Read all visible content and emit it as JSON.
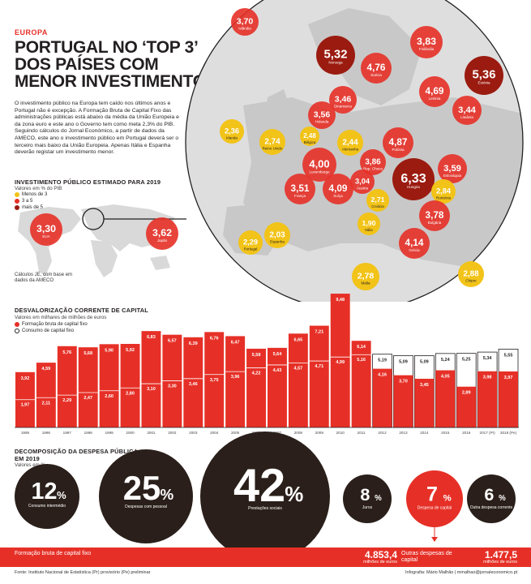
{
  "header": {
    "section": "EUROPA",
    "title": "PORTUGAL NO ‘TOP 3’ DOS PAÍSES COM MENOR INVESTIMENTO",
    "intro": "O investimento público na Europa tem caído nos últimos anos e Portugal não é excepção. A Formação Bruta de Capital Fixo das administrações públicas está abaixo da média da União Europeia e da zona euro e este ano o Governo tem como meta 2,3% do PIB. Seguindo cálculos do Jornal Económico, a partir de dados da AMECO, este ano o investimento público em Portugal deverá ser o terceiro mais baixo da União Europeia. Apenas Itália e Espanha deverão registar um investimento menor."
  },
  "colors": {
    "red": "#e63027",
    "dark_red": "#9b1b10",
    "yellow": "#f2c318",
    "dark": "#2a1f1a",
    "map_bg": "#dcdcdc"
  },
  "map": {
    "title": "INVESTIMENTO PÚBLICO ESTIMADO PARA 2019",
    "subtitle": "Valores em % do PIB",
    "legend": [
      {
        "label": "Menos de 3",
        "color": "#f2c318"
      },
      {
        "label": "3 a 5",
        "color": "#e63027"
      },
      {
        "label": "mais de 5",
        "color": "#9b1b10"
      }
    ],
    "notes": "Cálculos JE, com base em dados da AMECO",
    "countries": [
      {
        "name": "Islândia",
        "value": "3,70",
        "tier": "mid"
      },
      {
        "name": "EUA",
        "value": "3,30",
        "tier": "mid"
      },
      {
        "name": "Japão",
        "value": "3,62",
        "tier": "mid"
      },
      {
        "name": "Noruega",
        "value": "5,32",
        "tier": "high"
      },
      {
        "name": "Suécia",
        "value": "4,76",
        "tier": "mid"
      },
      {
        "name": "Finlândia",
        "value": "3,83",
        "tier": "mid"
      },
      {
        "name": "Estónia",
        "value": "5,36",
        "tier": "high"
      },
      {
        "name": "Letónia",
        "value": "4,69",
        "tier": "mid"
      },
      {
        "name": "Lituânia",
        "value": "3,44",
        "tier": "mid"
      },
      {
        "name": "Dinamarca",
        "value": "3,46",
        "tier": "mid"
      },
      {
        "name": "Holanda",
        "value": "3,56",
        "tier": "mid"
      },
      {
        "name": "Irlanda",
        "value": "2,36",
        "tier": "low"
      },
      {
        "name": "Reino Unido",
        "value": "2,74",
        "tier": "low"
      },
      {
        "name": "Bélgica",
        "value": "2,48",
        "tier": "low"
      },
      {
        "name": "Alemanha",
        "value": "2,44",
        "tier": "low"
      },
      {
        "name": "Polónia",
        "value": "4,87",
        "tier": "mid"
      },
      {
        "name": "Luxemburgo",
        "value": "4,00",
        "tier": "mid"
      },
      {
        "name": "Rep. Checa",
        "value": "3,86",
        "tier": "mid"
      },
      {
        "name": "Hungria",
        "value": "6,33",
        "tier": "high"
      },
      {
        "name": "Eslováquia",
        "value": "3,59",
        "tier": "mid"
      },
      {
        "name": "França",
        "value": "3,51",
        "tier": "mid"
      },
      {
        "name": "Suíça",
        "value": "4,09",
        "tier": "mid"
      },
      {
        "name": "Áustria",
        "value": "3,04",
        "tier": "mid"
      },
      {
        "name": "Croácia",
        "value": "2,71",
        "tier": "low"
      },
      {
        "name": "Roménia",
        "value": "2,84",
        "tier": "low"
      },
      {
        "name": "Bulgária",
        "value": "3,78",
        "tier": "mid"
      },
      {
        "name": "Itália",
        "value": "1,90",
        "tier": "low"
      },
      {
        "name": "Espanha",
        "value": "2,03",
        "tier": "low"
      },
      {
        "name": "Portugal",
        "value": "2,29",
        "tier": "low"
      },
      {
        "name": "Grécia",
        "value": "4,14",
        "tier": "mid"
      },
      {
        "name": "Malta",
        "value": "2,78",
        "tier": "low"
      },
      {
        "name": "Chipre",
        "value": "2,88",
        "tier": "low"
      }
    ]
  },
  "chart_data": {
    "type": "bar",
    "title": "DESVALORIZAÇÃO CORRENTE DE CAPITAL",
    "subtitle": "Valores em milhares de milhões de euros",
    "legend": [
      "Formação bruta de capital fixo",
      "Consumo de capital fixo"
    ],
    "categories": [
      "1995",
      "1996",
      "1997",
      "1998",
      "1999",
      "2000",
      "2001",
      "2002",
      "2003",
      "2004",
      "2005",
      "2006",
      "2007",
      "2008",
      "2009",
      "2010",
      "2011",
      "2012",
      "2013",
      "2014",
      "2015",
      "2016",
      "2017 (Pr)",
      "2018 (Pe)"
    ],
    "series": [
      {
        "name": "Formação bruta de capital fixo",
        "values": [
          3.92,
          4.59,
          5.76,
          5.68,
          5.9,
          5.92,
          6.83,
          6.57,
          6.39,
          6.76,
          6.47,
          5.58,
          5.64,
          6.65,
          7.21,
          9.48,
          6.14,
          4.16,
          3.7,
          3.45,
          4.05,
          2.89,
          3.98,
          3.97
        ],
        "labels": [
          "3,92",
          "4,59",
          "5,76",
          "5,68",
          "5,90",
          "5,92",
          "6,83",
          "6,57",
          "6,39",
          "6,76",
          "6,47",
          "5,58",
          "5,64",
          "6,65",
          "7,21",
          "9,48",
          "6,14",
          "4,16",
          "3,70",
          "3,45",
          "4,05",
          "2,89",
          "3,98",
          "3,97"
        ]
      },
      {
        "name": "Consumo de capital fixo",
        "values": [
          1.97,
          2.11,
          2.29,
          2.47,
          2.6,
          2.8,
          3.1,
          3.3,
          3.46,
          3.75,
          3.96,
          4.22,
          4.43,
          4.57,
          4.71,
          4.99,
          5.16,
          5.19,
          5.09,
          5.09,
          5.24,
          5.25,
          5.34,
          5.55
        ],
        "labels": [
          "1,97",
          "2,11",
          "2,29",
          "2,47",
          "2,60",
          "2,80",
          "3,10",
          "3,30",
          "3,46",
          "3,75",
          "3,96",
          "4,22",
          "4,43",
          "4,57",
          "4,71",
          "4,99",
          "5,16",
          "5,19",
          "5,09",
          "5,09",
          "5,24",
          "5,25",
          "5,34",
          "5,55"
        ]
      }
    ],
    "ylim": [
      0,
      10
    ]
  },
  "decomposition": {
    "title": "DECOMPOSIÇÃO DA DESPESA PÚBLICA EM 2019",
    "subtitle": "Valores em %",
    "items": [
      {
        "value": "12",
        "unit": "%",
        "label": "Consumo intermédio",
        "highlight": false
      },
      {
        "value": "25",
        "unit": "%",
        "label": "Despesas com pessoal",
        "highlight": false
      },
      {
        "value": "42",
        "unit": "%",
        "label": "Prestações sociais",
        "highlight": false
      },
      {
        "value": "8",
        "unit": "%",
        "label": "Juros",
        "highlight": false
      },
      {
        "value": "7",
        "unit": "%",
        "label": "Despesa de capital",
        "highlight": true
      },
      {
        "value": "6",
        "unit": "%",
        "label": "Outra despesa corrente",
        "highlight": false
      }
    ],
    "footer": [
      {
        "label": "Formação bruta de capital fixo",
        "value": "4.853,4",
        "unit": "milhões de euros"
      },
      {
        "label": "Outras despesas de capital",
        "value": "1.477,5",
        "unit": "milhões de euros"
      }
    ]
  },
  "source": "Fonte: Instituto Nacional de Estatística      (Pr) provisório   (Pe) preliminar",
  "credit": "Infografia: Mário Malhão  |  mmalhao@jornaleconomico.pt"
}
